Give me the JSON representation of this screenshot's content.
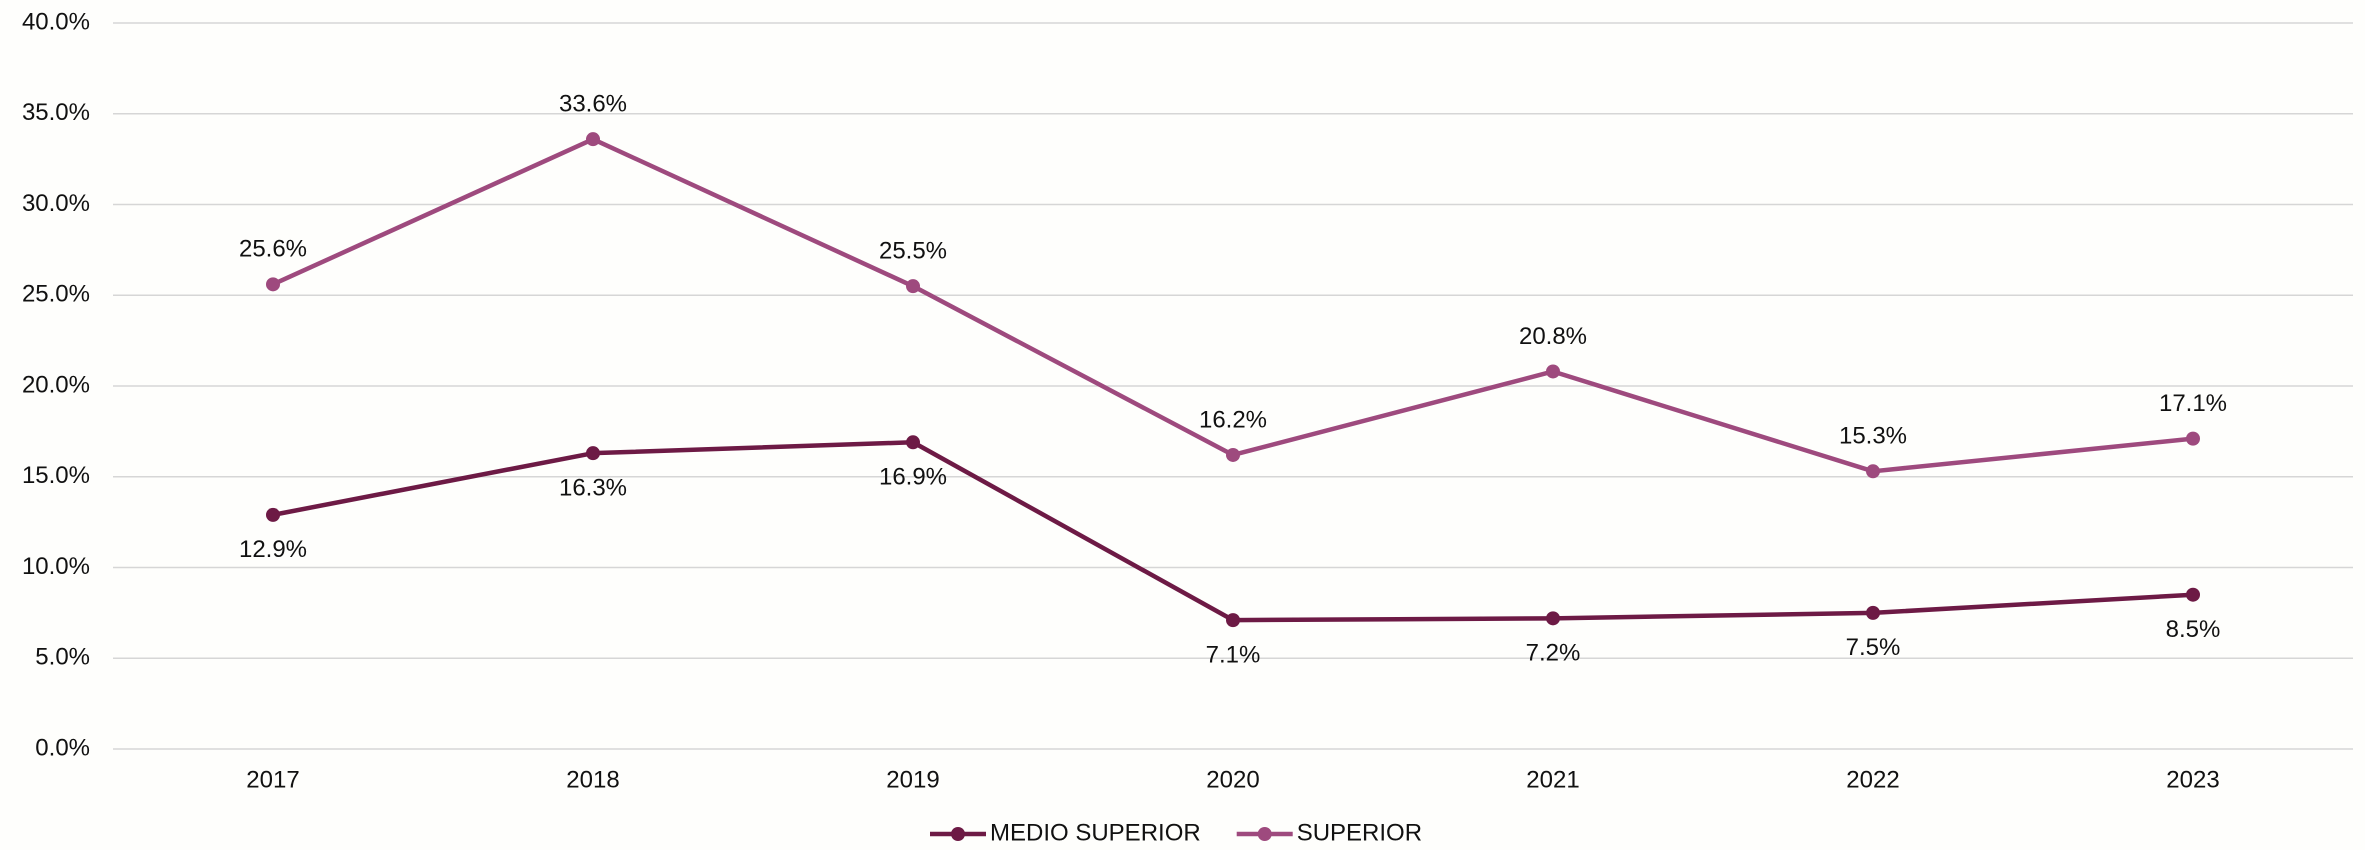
{
  "chart_data": {
    "type": "line",
    "categories": [
      "2017",
      "2018",
      "2019",
      "2020",
      "2021",
      "2022",
      "2023"
    ],
    "series": [
      {
        "name": "MEDIO SUPERIOR",
        "color": "#6d1a45",
        "values": [
          12.9,
          16.3,
          16.9,
          7.1,
          7.2,
          7.5,
          8.5
        ],
        "value_labels": [
          "12.9%",
          "16.3%",
          "16.9%",
          "7.1%",
          "7.2%",
          "7.5%",
          "8.5%"
        ]
      },
      {
        "name": "SUPERIOR",
        "color": "#9e4a7e",
        "values": [
          25.6,
          33.6,
          25.5,
          16.2,
          20.8,
          15.3,
          17.1
        ],
        "value_labels": [
          "25.6%",
          "33.6%",
          "25.5%",
          "16.2%",
          "20.8%",
          "15.3%",
          "17.1%"
        ]
      }
    ],
    "ylim": [
      0,
      40
    ],
    "yticks": [
      {
        "value": 0,
        "label": "0.0%"
      },
      {
        "value": 5,
        "label": "5.0%"
      },
      {
        "value": 10,
        "label": "10.0%"
      },
      {
        "value": 15,
        "label": "15.0%"
      },
      {
        "value": 20,
        "label": "20.0%"
      },
      {
        "value": 25,
        "label": "25.0%"
      },
      {
        "value": 30,
        "label": "30.0%"
      },
      {
        "value": 35,
        "label": "35.0%"
      },
      {
        "value": 40,
        "label": "40.0%"
      }
    ],
    "grid": true,
    "legend": "bottom"
  }
}
